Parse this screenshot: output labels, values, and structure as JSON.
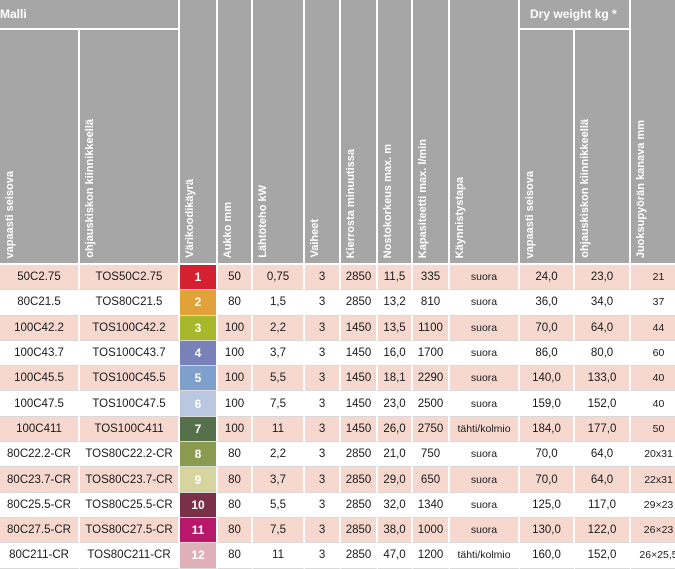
{
  "header": {
    "group_model": "Malli",
    "group_dry": "Dry weight kg *",
    "columns": [
      "vapaasti seisova",
      "ohjauskiskon kiinnikkeellä",
      "Värikoodikäyrä",
      "Aukko mm",
      "Lähtöteho kW",
      "Vaiheet",
      "Kierrosta minuutissa",
      "Nostokorkeus max. m",
      "Kapasiteetti max. l/min",
      "Käynnistystapa",
      "vapaasti seisova",
      "ohjauskiskon kiinnikkeellä",
      "Juoksupyörän kanava mm"
    ]
  },
  "colors": {
    "header_bg": "#a6a6a6",
    "row_odd": "#f6d8cf",
    "row_even": "#ffffff"
  },
  "rows": [
    {
      "model": "50C2.75",
      "rail": "TOS50C2.75",
      "code": "1",
      "code_color": "#d42030",
      "aukko": "50",
      "teho": "0,75",
      "vaiheet": "3",
      "kierrosta": "2850",
      "nosto": "11,5",
      "kapasiteetti": "335",
      "kaynnistys": "suora",
      "dry_free": "24,0",
      "dry_rail": "23,0",
      "kanava": "21"
    },
    {
      "model": "80C21.5",
      "rail": "TOS80C21.5",
      "code": "2",
      "code_color": "#e2a23a",
      "aukko": "80",
      "teho": "1,5",
      "vaiheet": "3",
      "kierrosta": "2850",
      "nosto": "13,2",
      "kapasiteetti": "810",
      "kaynnistys": "suora",
      "dry_free": "36,0",
      "dry_rail": "34,0",
      "kanava": "37"
    },
    {
      "model": "100C42.2",
      "rail": "TOS100C42.2",
      "code": "3",
      "code_color": "#a7b82c",
      "aukko": "100",
      "teho": "2,2",
      "vaiheet": "3",
      "kierrosta": "1450",
      "nosto": "13,5",
      "kapasiteetti": "1100",
      "kaynnistys": "suora",
      "dry_free": "70,0",
      "dry_rail": "64,0",
      "kanava": "44"
    },
    {
      "model": "100C43.7",
      "rail": "TOS100C43.7",
      "code": "4",
      "code_color": "#7882b8",
      "aukko": "100",
      "teho": "3,7",
      "vaiheet": "3",
      "kierrosta": "1450",
      "nosto": "16,0",
      "kapasiteetti": "1700",
      "kaynnistys": "suora",
      "dry_free": "86,0",
      "dry_rail": "80,0",
      "kanava": "60"
    },
    {
      "model": "100C45.5",
      "rail": "TOS100C45.5",
      "code": "5",
      "code_color": "#7fa0cc",
      "aukko": "100",
      "teho": "5,5",
      "vaiheet": "3",
      "kierrosta": "1450",
      "nosto": "18,1",
      "kapasiteetti": "2290",
      "kaynnistys": "suora",
      "dry_free": "140,0",
      "dry_rail": "133,0",
      "kanava": "40"
    },
    {
      "model": "100C47.5",
      "rail": "TOS100C47.5",
      "code": "6",
      "code_color": "#b9c8e0",
      "aukko": "100",
      "teho": "7,5",
      "vaiheet": "3",
      "kierrosta": "1450",
      "nosto": "23,0",
      "kapasiteetti": "2500",
      "kaynnistys": "suora",
      "dry_free": "159,0",
      "dry_rail": "152,0",
      "kanava": "40"
    },
    {
      "model": "100C411",
      "rail": "TOS100C411",
      "code": "7",
      "code_color": "#55704a",
      "aukko": "100",
      "teho": "11",
      "vaiheet": "3",
      "kierrosta": "1450",
      "nosto": "26,0",
      "kapasiteetti": "2750",
      "kaynnistys": "tähti/kolmio",
      "dry_free": "184,0",
      "dry_rail": "177,0",
      "kanava": "50"
    },
    {
      "model": "80C22.2-CR",
      "rail": "TOS80C22.2-CR",
      "code": "8",
      "code_color": "#8a9a4e",
      "aukko": "80",
      "teho": "2,2",
      "vaiheet": "3",
      "kierrosta": "2850",
      "nosto": "21,0",
      "kapasiteetti": "750",
      "kaynnistys": "suora",
      "dry_free": "70,0",
      "dry_rail": "64,0",
      "kanava": "20x31"
    },
    {
      "model": "80C23.7-CR",
      "rail": "TOS80C23.7-CR",
      "code": "9",
      "code_color": "#d8d4a0",
      "aukko": "80",
      "teho": "3,7",
      "vaiheet": "3",
      "kierrosta": "2850",
      "nosto": "29,0",
      "kapasiteetti": "650",
      "kaynnistys": "suora",
      "dry_free": "70,0",
      "dry_rail": "64,0",
      "kanava": "22x31"
    },
    {
      "model": "80C25.5-CR",
      "rail": "TOS80C25.5-CR",
      "code": "10",
      "code_color": "#7a3048",
      "aukko": "80",
      "teho": "5,5",
      "vaiheet": "3",
      "kierrosta": "2850",
      "nosto": "32,0",
      "kapasiteetti": "1340",
      "kaynnistys": "suora",
      "dry_free": "125,0",
      "dry_rail": "117,0",
      "kanava": "29×23"
    },
    {
      "model": "80C27.5-CR",
      "rail": "TOS80C27.5-CR",
      "code": "11",
      "code_color": "#b8186a",
      "aukko": "80",
      "teho": "7,5",
      "vaiheet": "3",
      "kierrosta": "2850",
      "nosto": "38,0",
      "kapasiteetti": "1000",
      "kaynnistys": "suora",
      "dry_free": "130,0",
      "dry_rail": "122,0",
      "kanava": "26×23"
    },
    {
      "model": "80C211-CR",
      "rail": "TOS80C211-CR",
      "code": "12",
      "code_color": "#e0b0b8",
      "aukko": "80",
      "teho": "11",
      "vaiheet": "3",
      "kierrosta": "2850",
      "nosto": "47,0",
      "kapasiteetti": "1200",
      "kaynnistys": "tähti/kolmio",
      "dry_free": "160,0",
      "dry_rail": "152,0",
      "kanava": "26×25,5"
    }
  ]
}
